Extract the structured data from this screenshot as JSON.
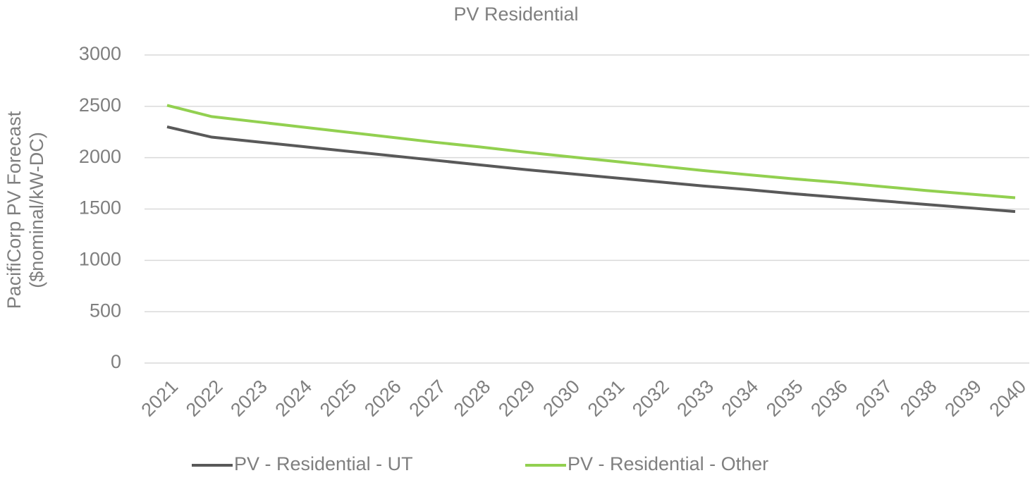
{
  "chart_data": {
    "type": "line",
    "title": "PV Residential",
    "y_label": [
      "PacifiCorp PV Forecast",
      "($nominal/kW-DC)"
    ],
    "categories": [
      "2021",
      "2022",
      "2023",
      "2024",
      "2025",
      "2026",
      "2027",
      "2028",
      "2029",
      "2030",
      "2031",
      "2032",
      "2033",
      "2034",
      "2035",
      "2036",
      "2037",
      "2038",
      "2039",
      "2040"
    ],
    "series": [
      {
        "name": "PV - Residential - UT",
        "color": "#595959",
        "values": [
          2300,
          2200,
          2155,
          2110,
          2065,
          2020,
          1975,
          1930,
          1885,
          1845,
          1805,
          1765,
          1725,
          1690,
          1650,
          1615,
          1580,
          1545,
          1510,
          1475
        ]
      },
      {
        "name": "PV - Residential - Other",
        "color": "#92d050",
        "values": [
          2510,
          2400,
          2350,
          2300,
          2250,
          2200,
          2150,
          2105,
          2055,
          2010,
          1965,
          1920,
          1875,
          1835,
          1795,
          1760,
          1720,
          1680,
          1645,
          1610
        ]
      }
    ],
    "ylim": [
      0,
      3000
    ],
    "yticks": [
      0,
      500,
      1000,
      1500,
      2000,
      2500,
      3000
    ],
    "grid": true,
    "legend": "bottom"
  }
}
